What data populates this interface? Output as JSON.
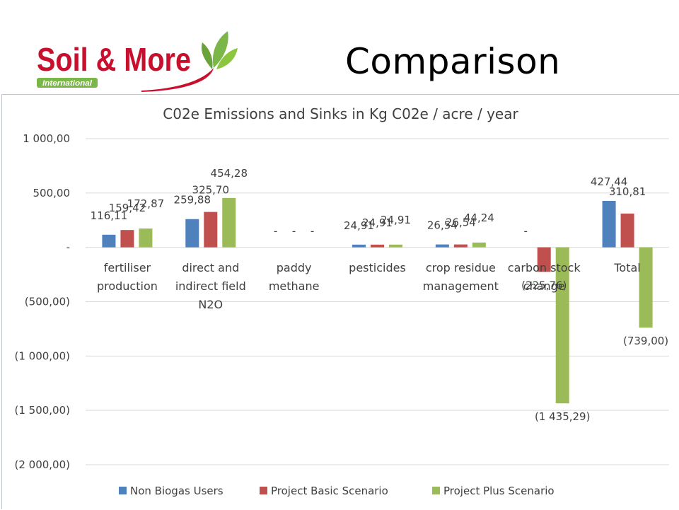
{
  "header": {
    "title": "Comparison",
    "logo": {
      "brand": "Soil & More",
      "subtitle": "International"
    }
  },
  "colors": {
    "series": [
      "#4f81bd",
      "#c0504d",
      "#9bbb59"
    ],
    "logo_red": "#c8102e",
    "logo_green": "#7ab648",
    "grid": "#d9d9d9",
    "frame": "#bfc6d0",
    "text": "#404040"
  },
  "chart_data": {
    "type": "bar",
    "title": "C02e Emissions and Sinks in Kg C02e / acre / year",
    "xlabel": "",
    "ylabel": "",
    "ylim": [
      -2000,
      1000
    ],
    "yticks": [
      1000,
      500,
      0,
      -500,
      -1000,
      -1500,
      -2000
    ],
    "ytick_labels": [
      "1 000,00",
      "500,00",
      "-",
      "(500,00)",
      "(1 000,00)",
      "(1 500,00)",
      "(2 000,00)"
    ],
    "grid": true,
    "legend": "bottom",
    "categories": [
      [
        "fertiliser",
        "production"
      ],
      [
        "direct and",
        "indirect field",
        "N2O"
      ],
      [
        "paddy",
        "methane"
      ],
      [
        "pesticides"
      ],
      [
        "crop residue",
        "management"
      ],
      [
        "carbon stock",
        "change"
      ],
      [
        "Total"
      ]
    ],
    "series": [
      {
        "name": "Non Biogas Users",
        "values": [
          116.11,
          259.88,
          0,
          24.91,
          26.54,
          0,
          427.44
        ],
        "labels": [
          "116,11",
          "259,88",
          "-",
          "24,91",
          "26,54",
          "-",
          "427,44"
        ]
      },
      {
        "name": "Project Basic Scenario",
        "values": [
          159.42,
          325.7,
          0,
          24.91,
          26.54,
          -225.76,
          310.81
        ],
        "labels": [
          "159,42",
          "325,70",
          "-",
          "24,91",
          "26,54",
          "(225,76)",
          "310,81"
        ]
      },
      {
        "name": "Project Plus Scenario",
        "values": [
          172.87,
          454.28,
          0,
          24.91,
          44.24,
          -1435.29,
          -739.0
        ],
        "labels": [
          "172,87",
          "454,28",
          "-",
          "24,91",
          "44,24",
          "(1 435,29)",
          "(739,00)"
        ]
      }
    ]
  }
}
